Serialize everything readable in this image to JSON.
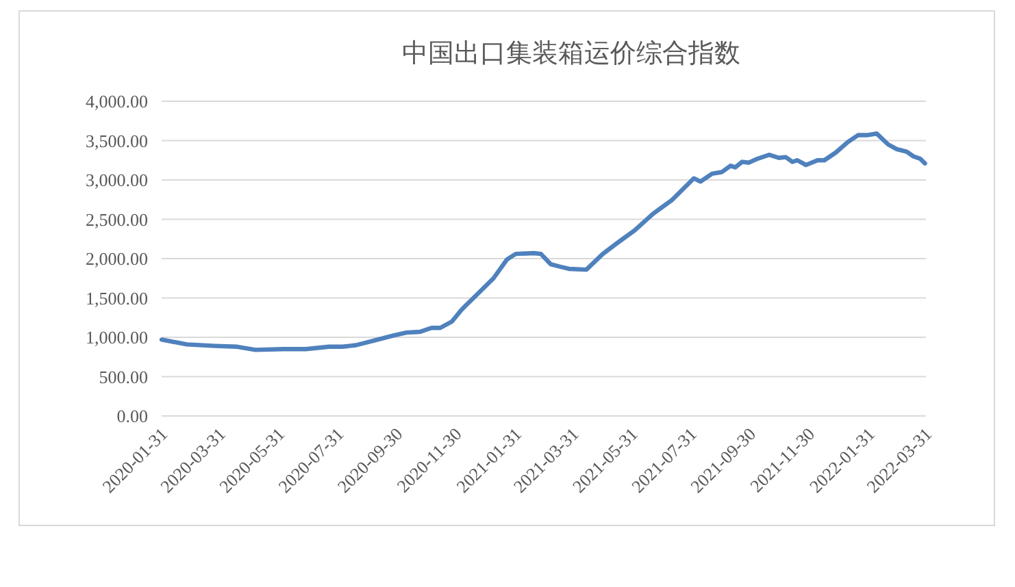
{
  "chart_data": {
    "type": "line",
    "title": "中国出口集装箱运价综合指数",
    "x": [
      "2020-01-31",
      "2020-02-26",
      "2020-03-26",
      "2020-04-18",
      "2020-05-07",
      "2020-06-05",
      "2020-06-28",
      "2020-07-22",
      "2020-08-05",
      "2020-08-19",
      "2020-09-07",
      "2020-09-26",
      "2020-10-10",
      "2020-10-24",
      "2020-11-05",
      "2020-11-14",
      "2020-11-26",
      "2020-12-06",
      "2020-12-10",
      "2020-12-20",
      "2021-01-08",
      "2021-01-22",
      "2021-01-31",
      "2021-02-19",
      "2021-02-26",
      "2021-03-08",
      "2021-03-17",
      "2021-03-27",
      "2021-04-14",
      "2021-05-01",
      "2021-05-15",
      "2021-06-03",
      "2021-06-22",
      "2021-07-11",
      "2021-08-03",
      "2021-08-10",
      "2021-08-22",
      "2021-09-01",
      "2021-09-10",
      "2021-09-15",
      "2021-09-22",
      "2021-09-29",
      "2021-10-08",
      "2021-10-20",
      "2021-10-30",
      "2021-11-06",
      "2021-11-13",
      "2021-11-18",
      "2021-11-27",
      "2021-12-09",
      "2021-12-16",
      "2021-12-28",
      "2022-01-09",
      "2022-01-20",
      "2022-01-30",
      "2022-02-08",
      "2022-02-20",
      "2022-03-01",
      "2022-03-11",
      "2022-03-18",
      "2022-03-25",
      "2022-03-30"
    ],
    "series": [
      {
        "color": "#4f81bd",
        "values": [
          970,
          910,
          890,
          880,
          840,
          850,
          850,
          880,
          880,
          900,
          960,
          1020,
          1060,
          1070,
          1120,
          1120,
          1200,
          1350,
          1400,
          1520,
          1750,
          1990,
          2060,
          2070,
          2060,
          1930,
          1900,
          1870,
          1860,
          2060,
          2190,
          2360,
          2570,
          2740,
          3020,
          2980,
          3080,
          3100,
          3180,
          3160,
          3230,
          3220,
          3270,
          3320,
          3280,
          3290,
          3230,
          3250,
          3190,
          3250,
          3250,
          3350,
          3480,
          3570,
          3570,
          3590,
          3450,
          3390,
          3360,
          3300,
          3270,
          3210
        ]
      }
    ],
    "xlim": [
      "2020-01-31",
      "2022-03-31"
    ],
    "xticks": [
      {
        "value": "2020-01-31",
        "label": "2020-01-31"
      },
      {
        "value": "2020-03-31",
        "label": "2020-03-31"
      },
      {
        "value": "2020-05-31",
        "label": "2020-05-31"
      },
      {
        "value": "2020-07-31",
        "label": "2020-07-31"
      },
      {
        "value": "2020-09-30",
        "label": "2020-09-30"
      },
      {
        "value": "2020-11-30",
        "label": "2020-11-30"
      },
      {
        "value": "2021-01-31",
        "label": "2021-01-31"
      },
      {
        "value": "2021-03-31",
        "label": "2021-03-31"
      },
      {
        "value": "2021-05-31",
        "label": "2021-05-31"
      },
      {
        "value": "2021-07-31",
        "label": "2021-07-31"
      },
      {
        "value": "2021-09-30",
        "label": "2021-09-30"
      },
      {
        "value": "2021-11-30",
        "label": "2021-11-30"
      },
      {
        "value": "2022-01-31",
        "label": "2022-01-31"
      },
      {
        "value": "2022-03-31",
        "label": "2022-03-31"
      }
    ],
    "ylim": [
      0,
      4000
    ],
    "yticks": [
      {
        "value": 0,
        "label": "0.00"
      },
      {
        "value": 500,
        "label": "500.00"
      },
      {
        "value": 1000,
        "label": "1,000.00"
      },
      {
        "value": 1500,
        "label": "1,500.00"
      },
      {
        "value": 2000,
        "label": "2,000.00"
      },
      {
        "value": 2500,
        "label": "2,500.00"
      },
      {
        "value": 3000,
        "label": "3,000.00"
      },
      {
        "value": 3500,
        "label": "3,500.00"
      },
      {
        "value": 4000,
        "label": "4,000.00"
      }
    ],
    "grid": "y",
    "marker": "none",
    "line_style": "solid"
  }
}
